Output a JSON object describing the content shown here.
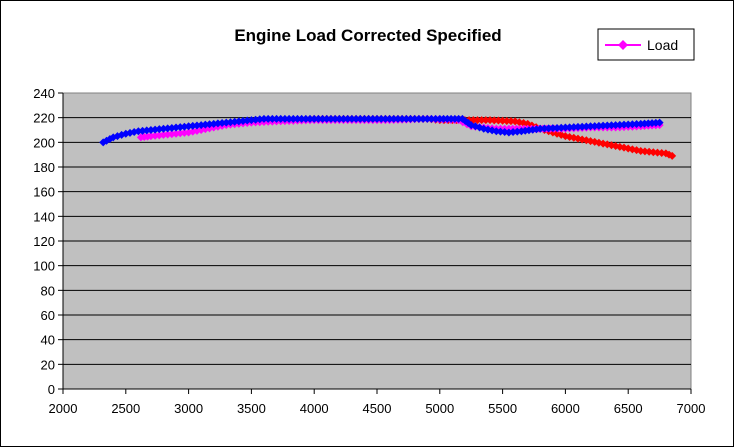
{
  "chart_data": {
    "type": "scatter",
    "title": "Engine Load Corrected Specified",
    "xlabel": "",
    "ylabel": "",
    "xlim": [
      2000,
      7000
    ],
    "ylim": [
      0,
      240
    ],
    "x_ticks": [
      2000,
      2500,
      3000,
      3500,
      4000,
      4500,
      5000,
      5500,
      6000,
      6500,
      7000
    ],
    "y_ticks": [
      0,
      20,
      40,
      60,
      80,
      100,
      120,
      140,
      160,
      180,
      200,
      220,
      240
    ],
    "grid": "horizontal",
    "plot_background": "#c0c0c0",
    "legend": {
      "position": "top-right",
      "entries": [
        "Load"
      ]
    },
    "series": [
      {
        "color": "#ff0000",
        "marker": "diamond",
        "points": [
          [
            3500,
            217
          ],
          [
            3700,
            218
          ],
          [
            4000,
            219
          ],
          [
            4300,
            219
          ],
          [
            4600,
            219
          ],
          [
            4900,
            219
          ],
          [
            5000,
            218
          ],
          [
            5200,
            218
          ],
          [
            5400,
            218
          ],
          [
            5600,
            217
          ],
          [
            5700,
            215
          ],
          [
            5800,
            211
          ],
          [
            5900,
            208
          ],
          [
            6000,
            205
          ],
          [
            6100,
            203
          ],
          [
            6200,
            201
          ],
          [
            6300,
            199
          ],
          [
            6400,
            197
          ],
          [
            6500,
            195
          ],
          [
            6600,
            193
          ],
          [
            6700,
            192
          ],
          [
            6800,
            191
          ],
          [
            6850,
            189
          ]
        ]
      },
      {
        "name": "Load",
        "color": "#ff00ff",
        "marker": "diamond",
        "points": [
          [
            2620,
            204
          ],
          [
            2700,
            205
          ],
          [
            2800,
            206
          ],
          [
            2900,
            207
          ],
          [
            3000,
            208
          ],
          [
            3100,
            210
          ],
          [
            3200,
            212
          ],
          [
            3300,
            214
          ],
          [
            3400,
            215
          ],
          [
            3500,
            216
          ],
          [
            3700,
            217
          ],
          [
            4000,
            218
          ],
          [
            4300,
            218
          ],
          [
            4600,
            218
          ],
          [
            4900,
            219
          ],
          [
            5150,
            218
          ],
          [
            5250,
            213
          ],
          [
            5350,
            212
          ],
          [
            5450,
            211
          ],
          [
            5550,
            211
          ],
          [
            5700,
            211
          ],
          [
            5850,
            211
          ],
          [
            6000,
            211
          ],
          [
            6200,
            212
          ],
          [
            6400,
            212
          ],
          [
            6600,
            213
          ],
          [
            6750,
            214
          ]
        ]
      },
      {
        "color": "#0000ff",
        "marker": "diamond",
        "points": [
          [
            2320,
            200
          ],
          [
            2400,
            204
          ],
          [
            2500,
            207
          ],
          [
            2600,
            209
          ],
          [
            2700,
            210
          ],
          [
            2800,
            211
          ],
          [
            2900,
            212
          ],
          [
            3000,
            213
          ],
          [
            3100,
            214
          ],
          [
            3200,
            215
          ],
          [
            3300,
            216
          ],
          [
            3400,
            217
          ],
          [
            3500,
            218
          ],
          [
            3600,
            219
          ],
          [
            3800,
            219
          ],
          [
            4000,
            219
          ],
          [
            4200,
            219
          ],
          [
            4400,
            219
          ],
          [
            4600,
            219
          ],
          [
            4800,
            219
          ],
          [
            5000,
            219
          ],
          [
            5180,
            219
          ],
          [
            5250,
            214
          ],
          [
            5350,
            211
          ],
          [
            5450,
            209
          ],
          [
            5550,
            208
          ],
          [
            5650,
            209
          ],
          [
            5800,
            211
          ],
          [
            6000,
            212
          ],
          [
            6200,
            213
          ],
          [
            6400,
            214
          ],
          [
            6600,
            215
          ],
          [
            6750,
            216
          ]
        ]
      }
    ]
  }
}
